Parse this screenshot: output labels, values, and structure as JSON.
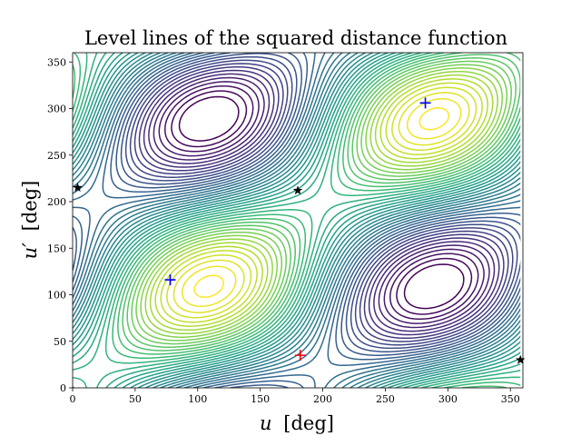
{
  "chart_data": {
    "type": "contour",
    "title": "Level lines of the squared distance function",
    "xlabel_var": "u",
    "xlabel_unit": "[deg]",
    "ylabel_var": "u′",
    "ylabel_unit": "[deg]",
    "xlim": [
      0,
      360
    ],
    "ylim": [
      0,
      360
    ],
    "xticks": [
      0,
      50,
      100,
      150,
      200,
      250,
      300,
      350
    ],
    "yticks": [
      0,
      50,
      100,
      150,
      200,
      250,
      300,
      350
    ],
    "colormap": "viridis",
    "plot_extent_x": [
      0,
      358
    ],
    "markers": {
      "minimum": {
        "x": 182,
        "y": 35,
        "symbol": "plus",
        "color": "#ff0000"
      },
      "saddles": [
        {
          "x": 78,
          "y": 116,
          "symbol": "plus",
          "color": "#0000ff"
        },
        {
          "x": 282,
          "y": 306,
          "symbol": "plus",
          "color": "#0000ff"
        }
      ],
      "maxima": [
        {
          "x": 4,
          "y": 215,
          "symbol": "star",
          "color": "#000000"
        },
        {
          "x": 180,
          "y": 212,
          "symbol": "star",
          "color": "#000000"
        },
        {
          "x": 358,
          "y": 30,
          "symbol": "star",
          "color": "#000000"
        }
      ]
    }
  }
}
